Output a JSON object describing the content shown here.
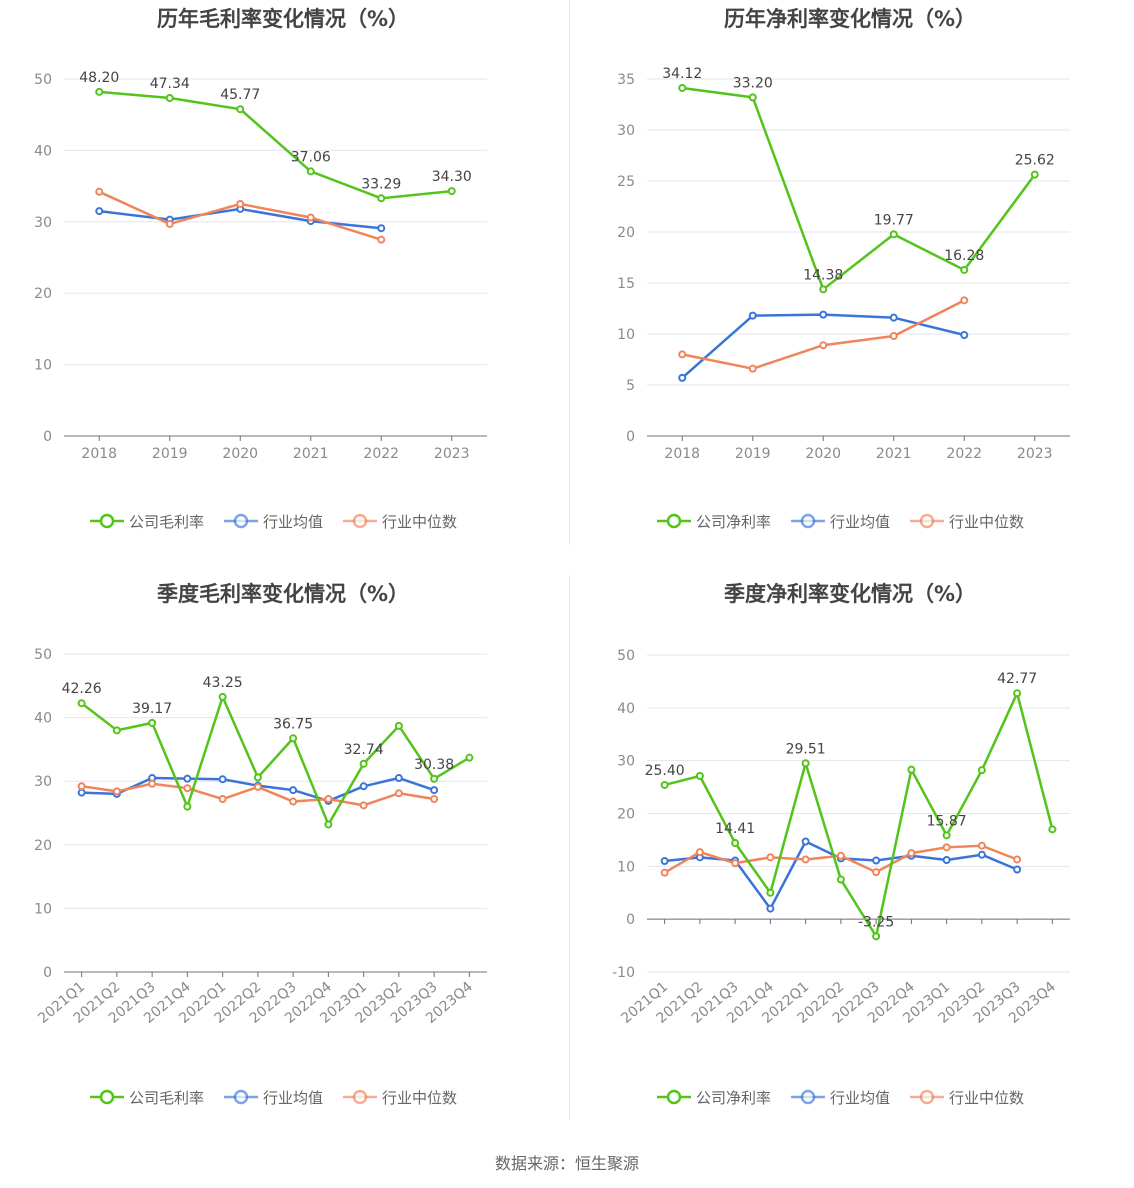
{
  "source": "数据来源：恒生聚源",
  "legend_labels": {
    "gross": [
      "公司毛利率",
      "行业均值",
      "行业中位数"
    ],
    "net": [
      "公司净利率",
      "行业均值",
      "行业中位数"
    ]
  },
  "colors": {
    "company": "#52c41a",
    "industry_avg": "#3b74d9",
    "industry_median": "#f0845a"
  },
  "chart_data": [
    {
      "type": "line",
      "title": "历年毛利率变化情况（%）",
      "categories": [
        "2018",
        "2019",
        "2020",
        "2021",
        "2022",
        "2023"
      ],
      "ylim": [
        0,
        50
      ],
      "yticks": [
        0,
        10,
        20,
        30,
        40,
        50
      ],
      "grid": true,
      "legend_position": "bottom",
      "series": [
        {
          "name": "公司毛利率",
          "values": [
            48.2,
            47.34,
            45.77,
            37.06,
            33.29,
            34.3
          ],
          "labels": [
            "48.20",
            "47.34",
            "45.77",
            "37.06",
            "33.29",
            "34.30"
          ]
        },
        {
          "name": "行业均值",
          "values": [
            31.5,
            30.3,
            31.8,
            30.1,
            29.1,
            null
          ]
        },
        {
          "name": "行业中位数",
          "values": [
            34.2,
            29.7,
            32.5,
            30.6,
            27.5,
            null
          ]
        }
      ]
    },
    {
      "type": "line",
      "title": "历年净利率变化情况（%）",
      "categories": [
        "2018",
        "2019",
        "2020",
        "2021",
        "2022",
        "2023"
      ],
      "ylim": [
        0,
        35
      ],
      "yticks": [
        0,
        5,
        10,
        15,
        20,
        25,
        30,
        35
      ],
      "grid": true,
      "legend_position": "bottom",
      "series": [
        {
          "name": "公司净利率",
          "values": [
            34.12,
            33.2,
            14.38,
            19.77,
            16.28,
            25.62
          ],
          "labels": [
            "34.12",
            "33.20",
            "14.38",
            "19.77",
            "16.28",
            "25.62"
          ]
        },
        {
          "name": "行业均值",
          "values": [
            5.7,
            11.8,
            11.9,
            11.6,
            9.9,
            null
          ]
        },
        {
          "name": "行业中位数",
          "values": [
            8.0,
            6.6,
            8.9,
            9.8,
            13.3,
            null
          ]
        }
      ]
    },
    {
      "type": "line",
      "title": "季度毛利率变化情况（%）",
      "categories": [
        "2021Q1",
        "2021Q2",
        "2021Q3",
        "2021Q4",
        "2022Q1",
        "2022Q2",
        "2022Q3",
        "2022Q4",
        "2023Q1",
        "2023Q2",
        "2023Q3",
        "2023Q4"
      ],
      "ylim": [
        0,
        50
      ],
      "yticks": [
        0,
        10,
        20,
        30,
        40,
        50
      ],
      "grid": true,
      "legend_position": "bottom",
      "series": [
        {
          "name": "公司毛利率",
          "values": [
            42.26,
            38.0,
            39.17,
            26.0,
            43.25,
            30.6,
            36.75,
            23.2,
            32.74,
            38.7,
            30.38,
            33.7
          ],
          "labels": [
            "42.26",
            "",
            "39.17",
            "",
            "43.25",
            "",
            "36.75",
            "",
            "32.74",
            "",
            "30.38",
            ""
          ]
        },
        {
          "name": "行业均值",
          "values": [
            28.2,
            28.0,
            30.5,
            30.4,
            30.3,
            29.3,
            28.6,
            26.9,
            29.2,
            30.5,
            28.6,
            null
          ]
        },
        {
          "name": "行业中位数",
          "values": [
            29.2,
            28.4,
            29.6,
            28.9,
            27.2,
            29.1,
            26.8,
            27.2,
            26.2,
            28.1,
            27.2,
            null
          ]
        }
      ]
    },
    {
      "type": "line",
      "title": "季度净利率变化情况（%）",
      "categories": [
        "2021Q1",
        "2021Q2",
        "2021Q3",
        "2021Q4",
        "2022Q1",
        "2022Q2",
        "2022Q3",
        "2022Q4",
        "2023Q1",
        "2023Q2",
        "2023Q3",
        "2023Q4"
      ],
      "ylim": [
        -10,
        50
      ],
      "yticks": [
        -10,
        0,
        10,
        20,
        30,
        40,
        50
      ],
      "grid": true,
      "legend_position": "bottom",
      "series": [
        {
          "name": "公司净利率",
          "values": [
            25.4,
            27.1,
            14.41,
            5.0,
            29.51,
            7.5,
            -3.25,
            28.3,
            15.87,
            28.2,
            42.77,
            17.0
          ],
          "labels": [
            "25.40",
            "",
            "14.41",
            "",
            "29.51",
            "",
            "-3.25",
            "",
            "15.87",
            "",
            "42.77",
            ""
          ]
        },
        {
          "name": "行业均值",
          "values": [
            11.0,
            11.7,
            11.1,
            2.0,
            14.7,
            11.5,
            11.1,
            12.0,
            11.2,
            12.2,
            9.4,
            null
          ]
        },
        {
          "name": "行业中位数",
          "values": [
            8.8,
            12.7,
            10.6,
            11.7,
            11.3,
            12.0,
            8.9,
            12.5,
            13.6,
            13.9,
            11.3,
            null
          ]
        }
      ]
    }
  ]
}
